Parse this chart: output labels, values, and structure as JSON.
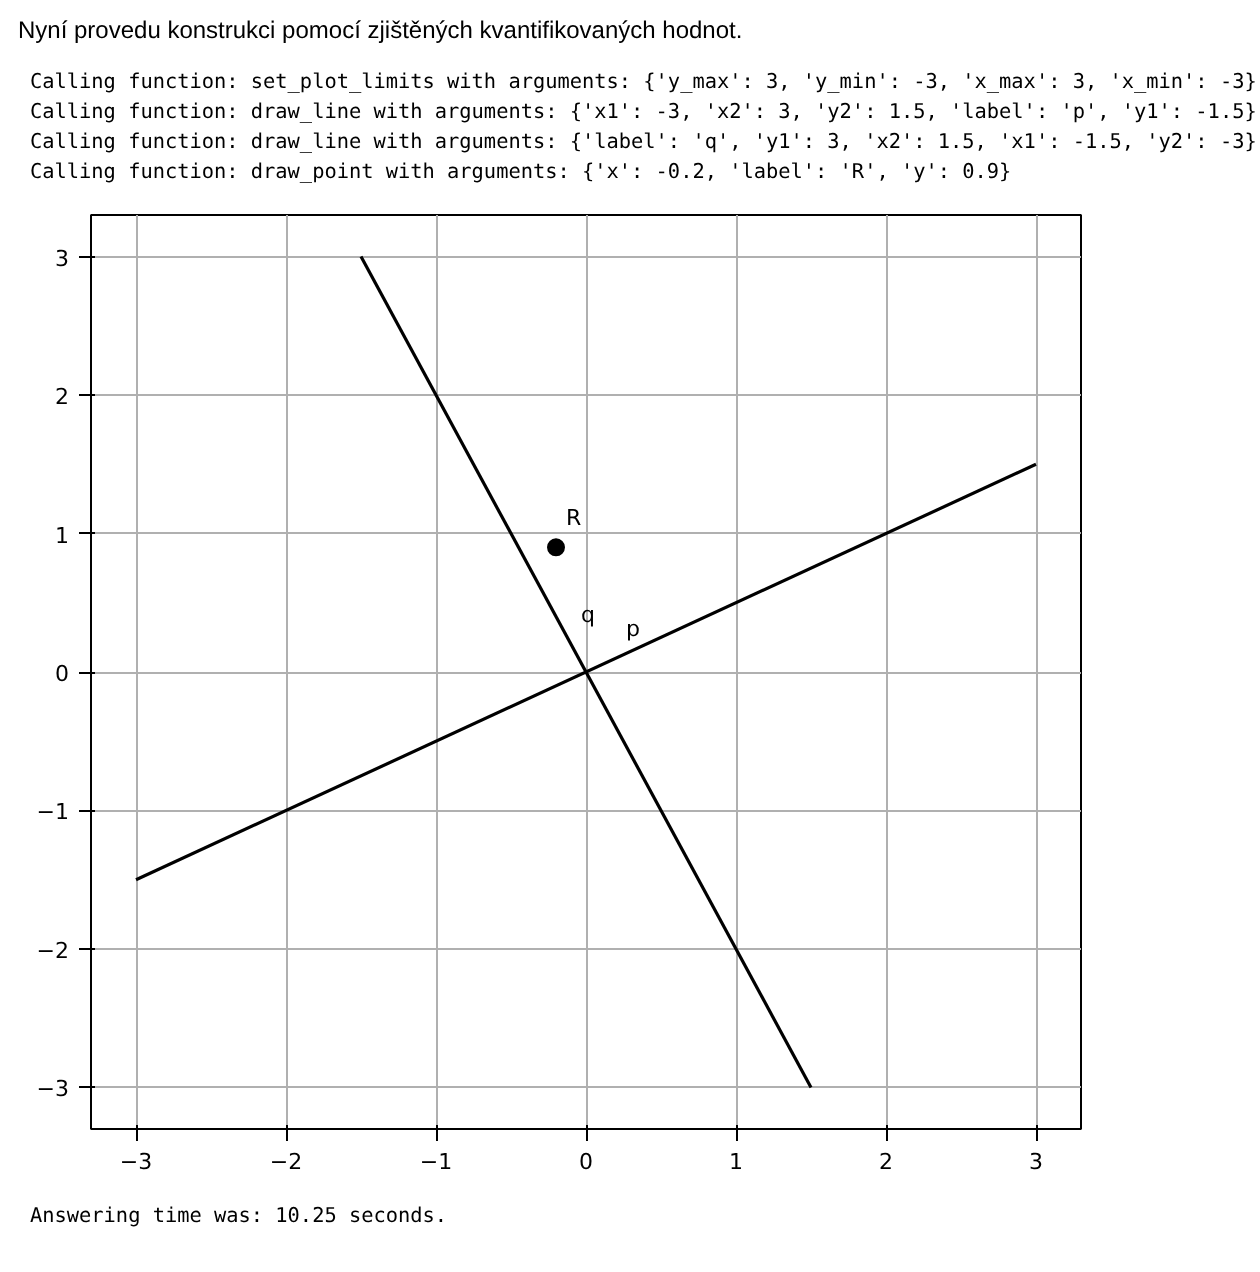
{
  "chart_data": {
    "type": "line",
    "title": "Nyní provedu konstrukci pomocí zjištěných kvantifikovaných hodnot.",
    "subtitle": "Calling function: set_plot_limits with arguments: {'y_max': 3, 'y_min': -3, 'x_max': 3, 'x_min': -3}\nCalling function: draw_line with arguments: {'x1': -3, 'x2': 3, 'y2': 1.5, 'label': 'p', 'y1': -1.5}\nCalling function: draw_line with arguments: {'label': 'q', 'y1': 3, 'x2': 1.5, 'x1': -1.5, 'y2': -3}\nCalling function: draw_point with arguments: {'x': -0.2, 'label': 'R', 'y': 0.9}",
    "series": [
      {
        "color": "#000000",
        "x": [
          -3,
          3
        ],
        "values": [
          -1.5,
          1.5
        ]
      },
      {
        "color": "#000000",
        "x": [
          -1.5,
          1.5
        ],
        "values": [
          3,
          -3
        ]
      },
      {
        "type": "scatter",
        "color": "#000000",
        "x": [
          -0.2
        ],
        "values": [
          0.9
        ],
        "marker": "circle"
      }
    ],
    "annotations": [
      {
        "text": "p",
        "x": 0.2,
        "y": 0.1
      },
      {
        "text": "q",
        "x": -0.1,
        "y": 0.2
      },
      {
        "text": "R",
        "x": -0.2,
        "y": 0.9
      },
      "Answering time was: 10.25 seconds."
    ],
    "xlim": [
      -3.3,
      3.3
    ],
    "ylim": [
      -3.3,
      3.3
    ],
    "xticks": [
      {
        "value": -3,
        "label": "−3"
      },
      {
        "value": -2,
        "label": "−2"
      },
      {
        "value": -1,
        "label": "−1"
      },
      0,
      1,
      2,
      3
    ],
    "yticks": [
      {
        "value": -3,
        "label": "−3"
      },
      {
        "value": -2,
        "label": "−2"
      },
      {
        "value": -1,
        "label": "−1"
      },
      0,
      1,
      2,
      3
    ],
    "grid": true
  }
}
